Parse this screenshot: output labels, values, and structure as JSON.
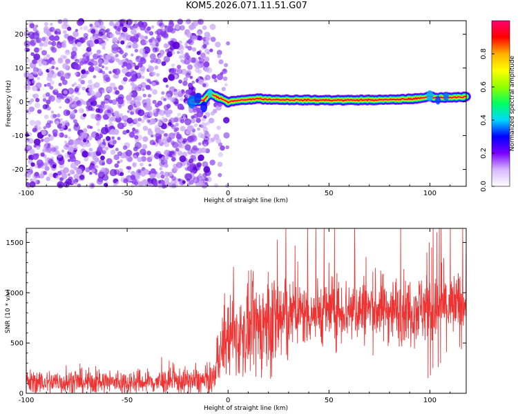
{
  "title": "KOM5.2026.071.11.51.G07",
  "colors": {
    "snr_line": "#ee3333",
    "axis": "#000000",
    "scatter_purple": "#8a3cf0",
    "scatter_light": "#c9a6f7",
    "scatter_deep": "#5a00d8"
  },
  "chart_data": [
    {
      "type": "heatmap",
      "title": "KOM5.2026.071.11.51.G07",
      "xlabel": "Height of straight line (km)",
      "ylabel": "Frequency (Hz)",
      "xlim": [
        -100,
        118
      ],
      "ylim": [
        -25,
        24
      ],
      "x_ticks": [
        -100,
        -50,
        0,
        50,
        100
      ],
      "y_ticks": [
        -20,
        -10,
        0,
        10,
        20
      ],
      "noise_region_x": [
        -100,
        -10
      ],
      "signal_track": {
        "x": [
          -18,
          -12,
          -9,
          -6,
          -2,
          0,
          5,
          10,
          14,
          20,
          40,
          60,
          80,
          95,
          100,
          104,
          108,
          118
        ],
        "freq_hz": [
          0,
          0.5,
          2.5,
          1.5,
          0.5,
          0,
          0.5,
          0.6,
          1.0,
          0.7,
          0.5,
          0.5,
          0.6,
          1.0,
          1.6,
          1.2,
          1.3,
          1.5
        ],
        "amplitude": [
          0.3,
          0.35,
          0.45,
          0.5,
          0.55,
          0.6,
          0.75,
          0.8,
          0.8,
          0.85,
          0.9,
          0.92,
          0.9,
          0.85,
          0.8,
          0.75,
          0.8,
          0.85
        ]
      },
      "colorbar": {
        "label": "Normalized spectral amplitude",
        "range": [
          0.0,
          1.0
        ],
        "ticks": [
          "0.0",
          "0.2",
          "0.4",
          "0.6",
          "0.8"
        ],
        "colors": [
          "#ffffff",
          "#d8b8ff",
          "#7b00ff",
          "#0000ff",
          "#00d8ff",
          "#00ff60",
          "#90ff00",
          "#ffff00",
          "#ffb000",
          "#ff0000",
          "#ff0070"
        ]
      }
    },
    {
      "type": "line",
      "xlabel": "Height of straight line (km)",
      "ylabel": "SNR (10 * v/v)",
      "xlim": [
        -100,
        118
      ],
      "ylim": [
        0,
        1640
      ],
      "x_ticks": [
        -100,
        -50,
        0,
        50,
        100
      ],
      "y_ticks": [
        0,
        500,
        1000,
        1500
      ],
      "series": [
        {
          "name": "SNR",
          "x": [
            -100,
            -90,
            -80,
            -70,
            -60,
            -50,
            -40,
            -30,
            -20,
            -10,
            -7,
            -5,
            -3,
            0,
            5,
            10,
            15,
            20,
            25,
            30,
            40,
            50,
            60,
            70,
            80,
            90,
            95,
            98,
            100,
            102,
            104,
            106,
            108,
            112,
            118
          ],
          "values": [
            110,
            110,
            110,
            110,
            110,
            110,
            110,
            115,
            120,
            120,
            180,
            300,
            460,
            560,
            560,
            620,
            660,
            700,
            740,
            775,
            800,
            820,
            830,
            840,
            840,
            830,
            850,
            860,
            820,
            800,
            830,
            880,
            860,
            860,
            890
          ]
        }
      ],
      "bursts": [
        {
          "x": 100,
          "values": [
            1400,
            150,
            1500,
            180,
            1450,
            250
          ]
        },
        {
          "x": 105,
          "values": [
            1600,
            260,
            1640,
            300,
            1300
          ]
        }
      ]
    }
  ]
}
